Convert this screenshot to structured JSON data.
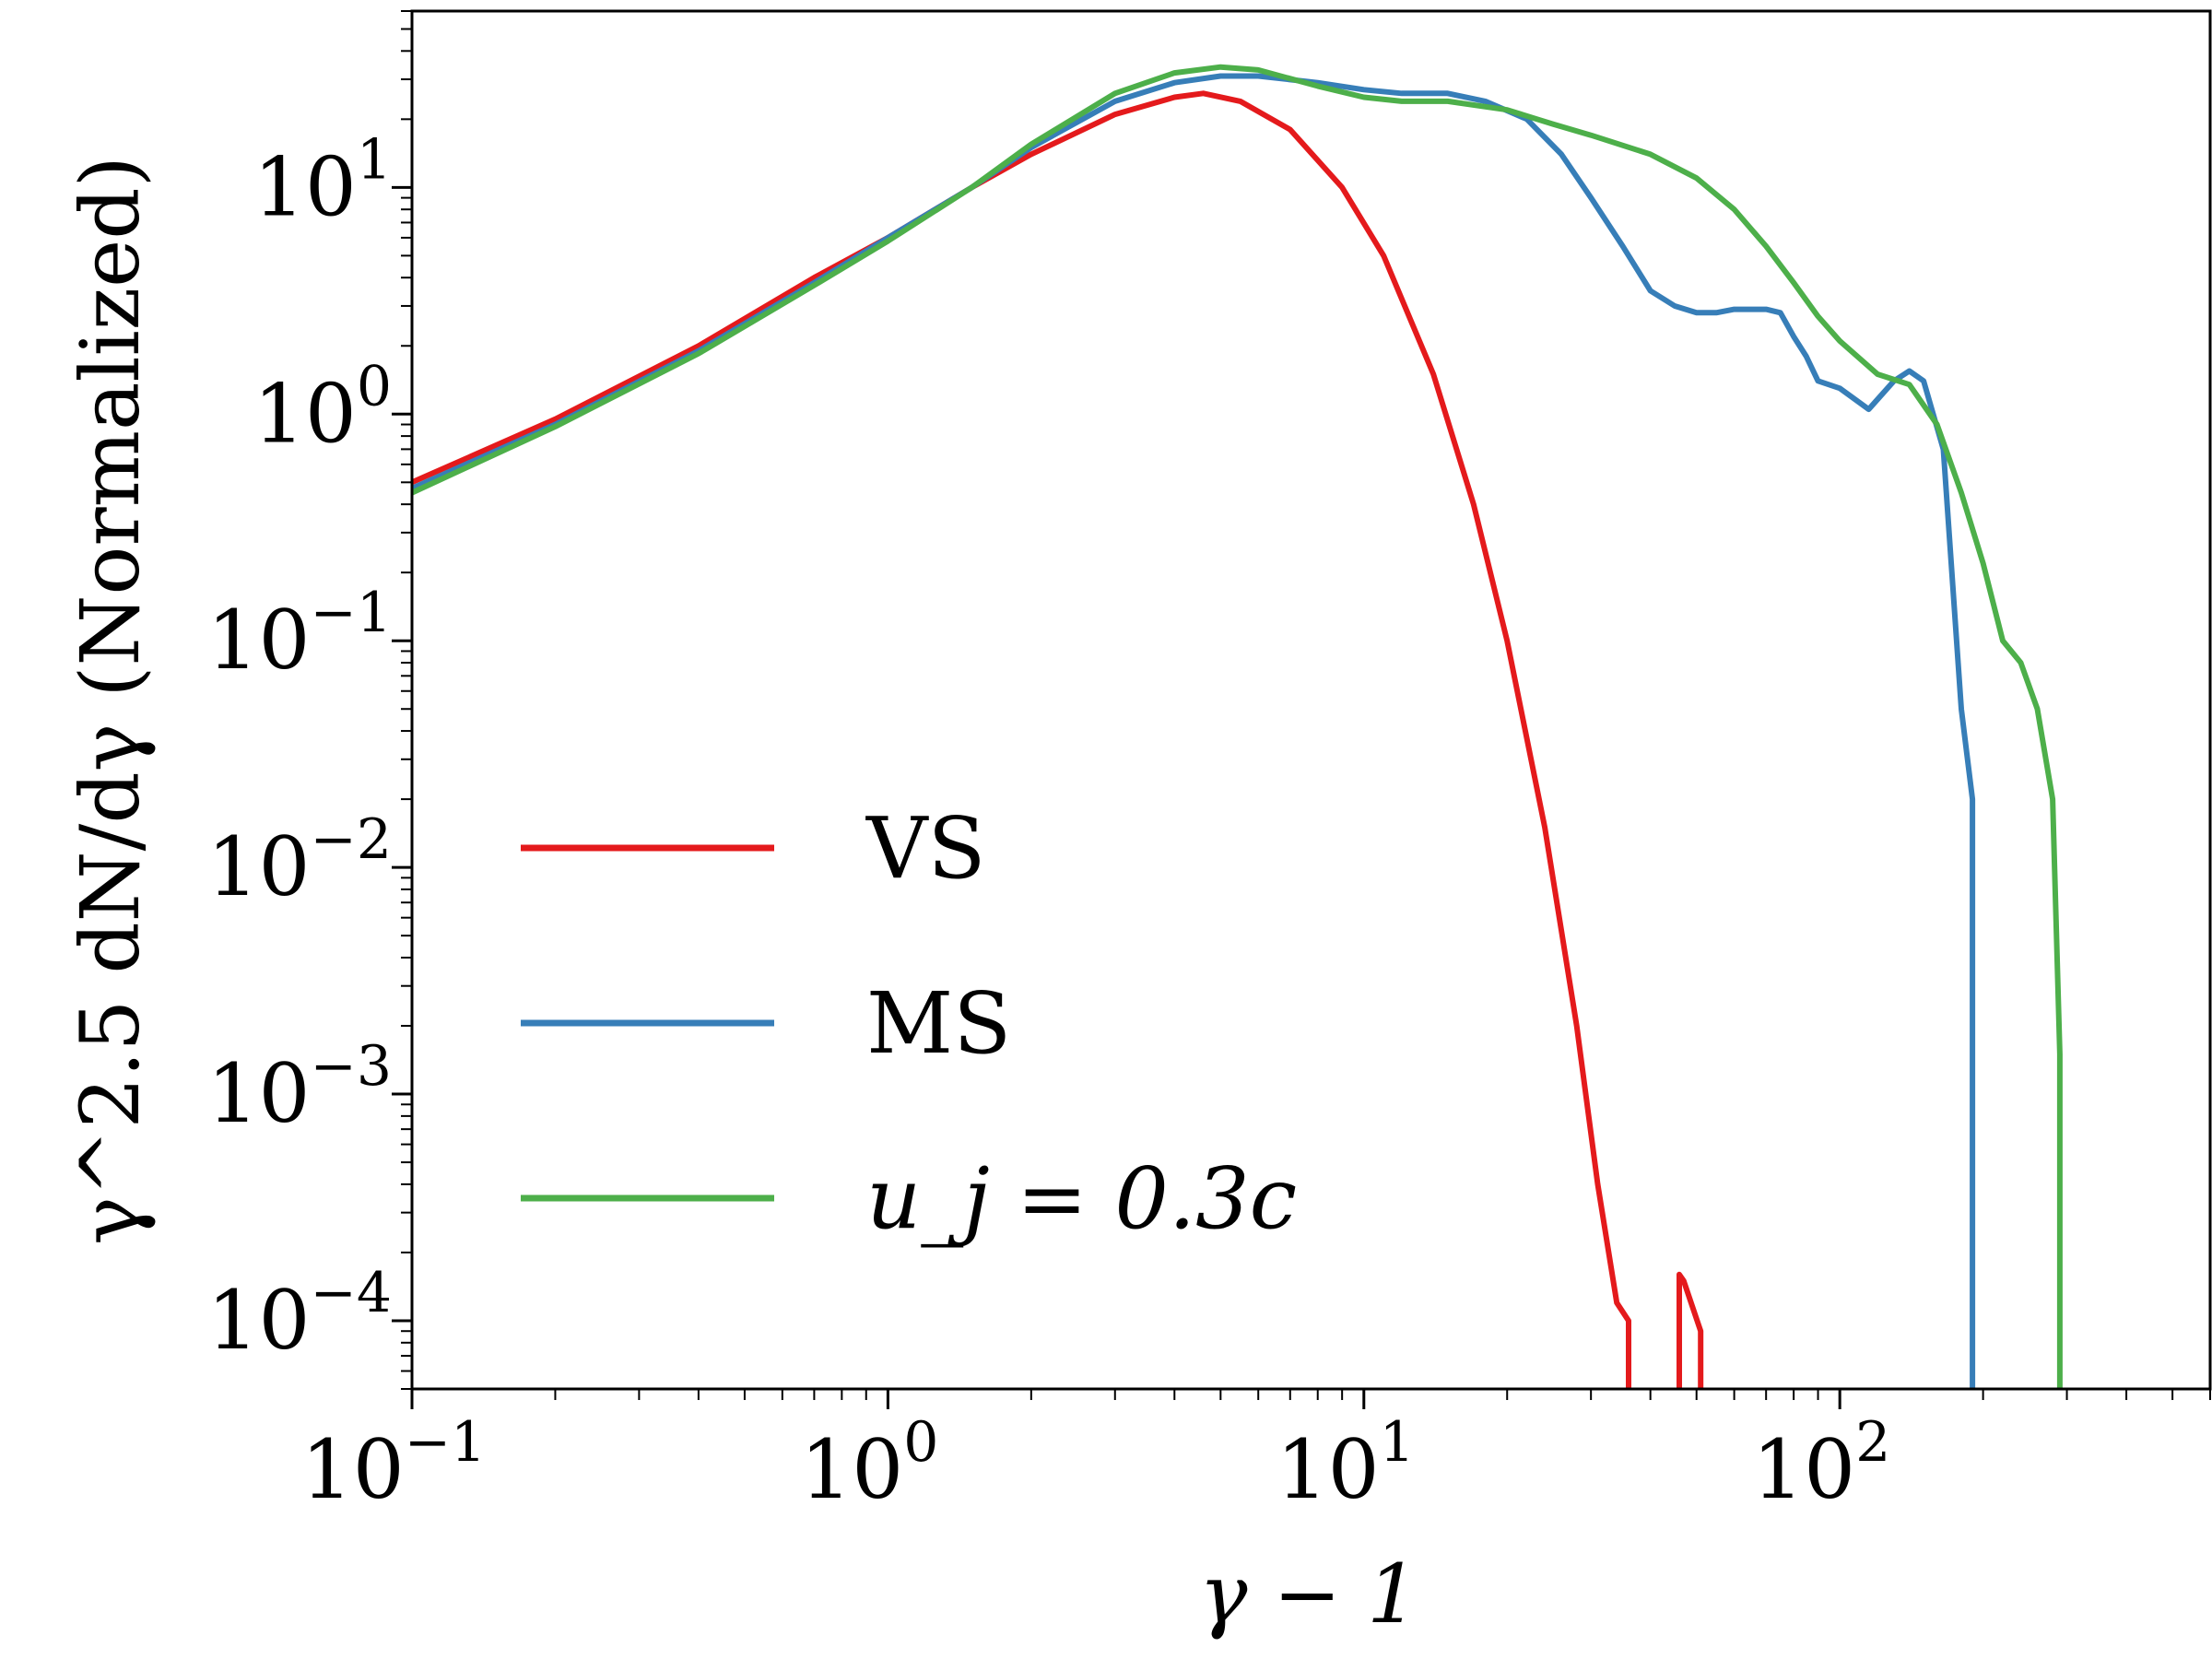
{
  "chart_data": {
    "type": "line",
    "x_scale": "log",
    "y_scale": "log",
    "xlim": [
      0.1,
      600
    ],
    "ylim": [
      5e-05,
      60
    ],
    "xlabel": "γ − 1",
    "ylabel": "γ^2.5 dN/dγ (Normalized)",
    "x_ticks": [
      {
        "base": "10",
        "exp": "−1",
        "value": 0.1
      },
      {
        "base": "10",
        "exp": "0",
        "value": 1
      },
      {
        "base": "10",
        "exp": "1",
        "value": 10
      },
      {
        "base": "10",
        "exp": "2",
        "value": 100
      }
    ],
    "y_ticks": [
      {
        "base": "10",
        "exp": "−4",
        "value": 0.0001
      },
      {
        "base": "10",
        "exp": "−3",
        "value": 0.001
      },
      {
        "base": "10",
        "exp": "−2",
        "value": 0.01
      },
      {
        "base": "10",
        "exp": "−1",
        "value": 0.1
      },
      {
        "base": "10",
        "exp": "0",
        "value": 1
      },
      {
        "base": "10",
        "exp": "1",
        "value": 10
      }
    ],
    "legend_position": "lower-left",
    "series": [
      {
        "name": "VS",
        "color": "#e41a1c",
        "x": [
          0.1,
          0.2,
          0.4,
          0.7,
          1.0,
          1.5,
          2.0,
          3.0,
          4.0,
          4.6,
          5.5,
          7.0,
          9.0,
          11.0,
          14.0,
          17.0,
          20.0,
          24.0,
          28.0,
          31.0,
          34.0,
          36.0,
          36.0
        ],
        "y": [
          0.5,
          0.95,
          2.0,
          4.0,
          6.0,
          10.0,
          14.0,
          21.0,
          25.0,
          26.0,
          24.0,
          18.0,
          10.0,
          5.0,
          1.5,
          0.4,
          0.1,
          0.015,
          0.002,
          0.0004,
          0.00012,
          0.0001,
          5e-05
        ],
        "spike": {
          "x": [
            46.0,
            46.0,
            47.0,
            51.0,
            51.0
          ],
          "y": [
            5e-05,
            0.00016,
            0.00015,
            9e-05,
            5e-05
          ]
        }
      },
      {
        "name": "MS",
        "color": "#377eb8",
        "x": [
          0.1,
          0.2,
          0.4,
          0.7,
          1.0,
          1.5,
          2.0,
          3.0,
          4.0,
          5.0,
          6.0,
          8.0,
          10.0,
          12.0,
          15.0,
          18.0,
          22.0,
          26.0,
          30.0,
          35.0,
          40.0,
          45.0,
          50.0,
          55.0,
          60.0,
          65.0,
          70.0,
          75.0,
          80.0,
          85.0,
          90.0,
          100.0,
          115.0,
          130.0,
          140.0,
          150.0,
          165.0,
          180.0,
          190.0,
          190.0
        ],
        "y": [
          0.47,
          0.9,
          1.9,
          3.8,
          6.0,
          10.0,
          15.0,
          24.0,
          29.0,
          31.0,
          31.0,
          29.0,
          27.0,
          26.0,
          26.0,
          24.0,
          20.0,
          14.0,
          9.0,
          5.5,
          3.5,
          3.0,
          2.8,
          2.8,
          2.9,
          2.9,
          2.9,
          2.8,
          2.2,
          1.8,
          1.4,
          1.3,
          1.05,
          1.4,
          1.55,
          1.4,
          0.7,
          0.05,
          0.02,
          5e-05
        ]
      },
      {
        "name": "u_j = 0.3c",
        "color": "#4daf4a",
        "x": [
          0.1,
          0.2,
          0.4,
          0.7,
          1.0,
          1.5,
          2.0,
          3.0,
          4.0,
          5.0,
          6.0,
          8.0,
          10.0,
          12.0,
          15.0,
          20.0,
          25.0,
          30.0,
          40.0,
          50.0,
          60.0,
          70.0,
          80.0,
          90.0,
          100.0,
          120.0,
          140.0,
          160.0,
          180.0,
          200.0,
          220.0,
          240.0,
          260.0,
          280.0,
          290.0,
          290.0
        ],
        "y": [
          0.45,
          0.88,
          1.85,
          3.7,
          5.8,
          10.0,
          15.5,
          26.0,
          32.0,
          34.0,
          33.0,
          28.0,
          25.0,
          24.0,
          24.0,
          22.0,
          19.0,
          17.0,
          14.0,
          11.0,
          8.0,
          5.5,
          3.8,
          2.7,
          2.1,
          1.5,
          1.35,
          0.9,
          0.45,
          0.22,
          0.1,
          0.08,
          0.05,
          0.02,
          0.0015,
          5e-05
        ]
      }
    ]
  }
}
